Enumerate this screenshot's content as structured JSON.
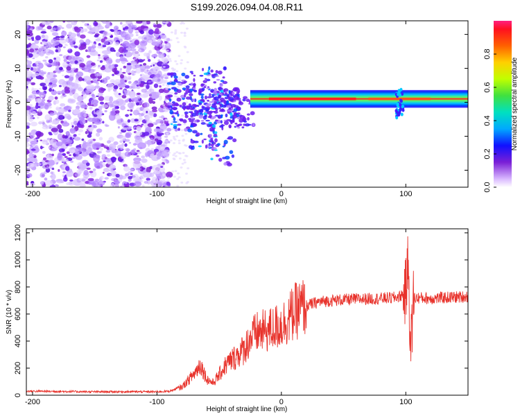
{
  "figure": {
    "title": "S199.2026.094.04.08.R11"
  },
  "chart_data": [
    {
      "type": "heatmap",
      "name": "spectrogram",
      "xlabel": "Height of straight line (km)",
      "ylabel": "Frequency (Hz)",
      "xlim": [
        -205,
        150
      ],
      "ylim": [
        -25,
        24
      ],
      "xticks": [
        -200,
        -100,
        0,
        100
      ],
      "yticks": [
        20,
        10,
        0,
        -10,
        -20
      ],
      "colorbar": {
        "label": "Normalized spectral amplitude",
        "range": [
          0.0,
          1.0
        ],
        "ticks": [
          "0.0",
          "0.2",
          "0.4",
          "0.6",
          "0.8"
        ],
        "tick_values": [
          0.0,
          0.2,
          0.4,
          0.6,
          0.8
        ]
      },
      "features": [
        {
          "description": "scattered low-amplitude noise",
          "x_range": [
            -205,
            -90
          ],
          "y_range": [
            -25,
            24
          ],
          "amplitude": [
            0.0,
            0.2
          ]
        },
        {
          "description": "clustered transition energy",
          "x_range": [
            -90,
            -25
          ],
          "y_range": [
            -15,
            8
          ],
          "amplitude": [
            0.1,
            0.35
          ]
        },
        {
          "description": "stable carrier line",
          "x_range": [
            -25,
            150
          ],
          "center_hz": 1,
          "amplitude": [
            0.3,
            1.0
          ]
        },
        {
          "description": "broadband disturbance",
          "x": 95,
          "y_range": [
            -5,
            4
          ]
        }
      ]
    },
    {
      "type": "line",
      "name": "snr",
      "xlabel": "Height of straight line (km)",
      "ylabel": "SNR (10 * v/v)",
      "xlim": [
        -205,
        150
      ],
      "ylim": [
        0,
        1230
      ],
      "xticks": [
        -200,
        -100,
        0,
        100
      ],
      "yticks": [
        0,
        200,
        400,
        600,
        800,
        1000,
        1200
      ],
      "color": "#e8322b",
      "series": [
        {
          "name": "SNR",
          "x": [
            -205,
            -180,
            -150,
            -120,
            -100,
            -90,
            -80,
            -75,
            -70,
            -65,
            -60,
            -55,
            -50,
            -45,
            -40,
            -35,
            -30,
            -25,
            -20,
            -15,
            -10,
            -5,
            0,
            5,
            10,
            15,
            20,
            30,
            40,
            50,
            60,
            70,
            80,
            90,
            95,
            100,
            102,
            104,
            106,
            110,
            120,
            130,
            140,
            150
          ],
          "y": [
            30,
            28,
            25,
            26,
            25,
            30,
            60,
            110,
            160,
            230,
            120,
            90,
            150,
            220,
            260,
            300,
            340,
            420,
            460,
            470,
            480,
            500,
            520,
            560,
            610,
            640,
            660,
            690,
            700,
            705,
            710,
            712,
            715,
            720,
            730,
            760,
            1000,
            300,
            720,
            720,
            715,
            720,
            725,
            730
          ]
        }
      ]
    }
  ]
}
